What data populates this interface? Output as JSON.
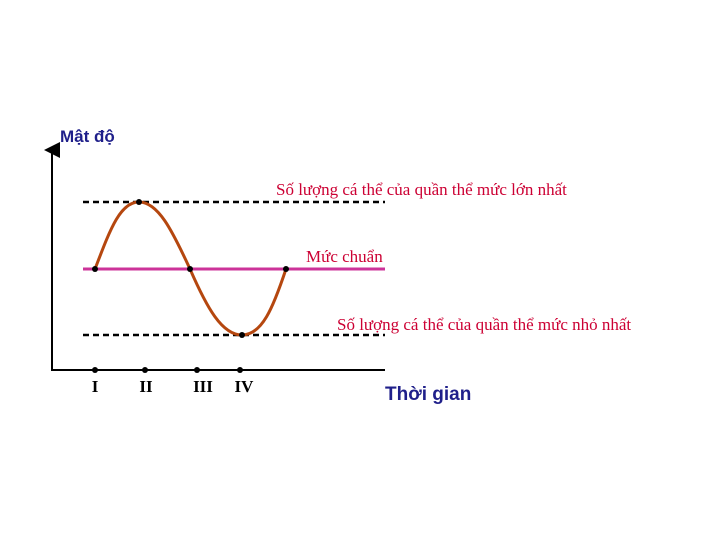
{
  "y_axis_label": "Mật độ",
  "x_axis_label": "Thời gian",
  "max_label": "Số lượng cá thể của quần thể mức lớn nhất",
  "standard_label": "Mức chuẩn",
  "min_label": "Số lượng cá thể của quần thể mức nhỏ nhất",
  "phases": [
    "I",
    "II",
    "III",
    "IV"
  ]
}
